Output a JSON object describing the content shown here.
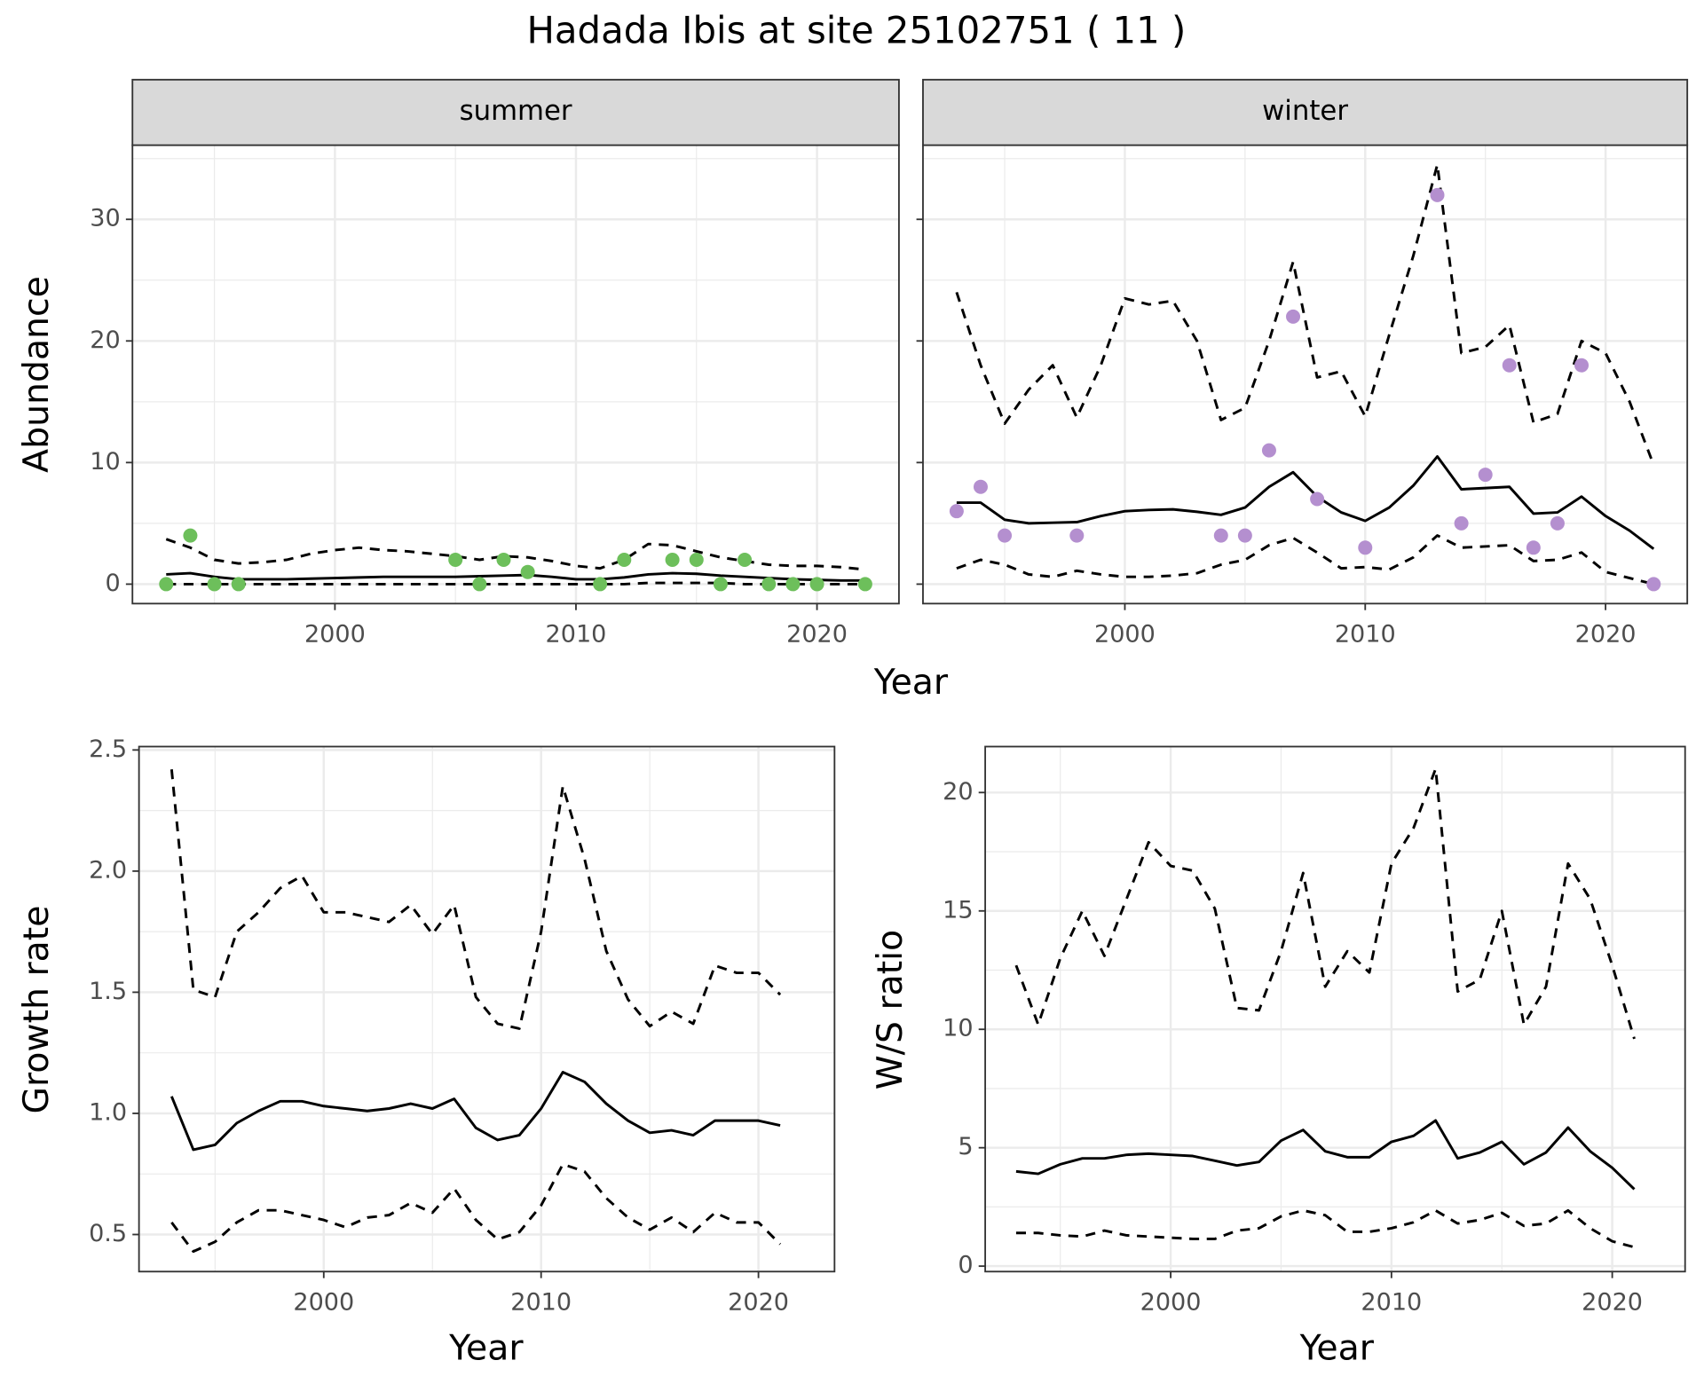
{
  "title": "Hadada Ibis at site 25102751 ( 11 )",
  "chart_data": [
    {
      "type": "line",
      "strip": "summer",
      "xlabel": "Year",
      "ylabel": "Abundance",
      "x": [
        1993,
        1994,
        1995,
        1996,
        1997,
        1998,
        1999,
        2000,
        2001,
        2002,
        2003,
        2004,
        2005,
        2006,
        2007,
        2008,
        2009,
        2010,
        2011,
        2012,
        2013,
        2014,
        2015,
        2016,
        2017,
        2018,
        2019,
        2020,
        2021,
        2022
      ],
      "series": [
        {
          "color": "#000000",
          "dash": "solid",
          "values": [
            0.8,
            0.9,
            0.6,
            0.4,
            0.4,
            0.4,
            0.45,
            0.5,
            0.55,
            0.6,
            0.6,
            0.6,
            0.6,
            0.65,
            0.7,
            0.75,
            0.6,
            0.4,
            0.4,
            0.55,
            0.8,
            0.9,
            0.85,
            0.7,
            0.6,
            0.5,
            0.4,
            0.35,
            0.3,
            0.3
          ]
        },
        {
          "color": "#000000",
          "dash": "dashed",
          "values": [
            3.7,
            3.0,
            2.0,
            1.7,
            1.8,
            2.0,
            2.5,
            2.8,
            3.0,
            2.8,
            2.7,
            2.5,
            2.3,
            2.0,
            2.3,
            2.2,
            1.9,
            1.5,
            1.3,
            2.0,
            3.3,
            3.2,
            2.7,
            2.2,
            1.9,
            1.6,
            1.5,
            1.5,
            1.4,
            1.2
          ]
        },
        {
          "color": "#000000",
          "dash": "dashed",
          "values": [
            0,
            0,
            0,
            0,
            0,
            0,
            0,
            0,
            0,
            0,
            0,
            0,
            0,
            0,
            0,
            0,
            0,
            0,
            0,
            0,
            0.1,
            0.1,
            0.1,
            0.1,
            0,
            0,
            0,
            0,
            0,
            0
          ]
        }
      ],
      "points": {
        "color": "#6dbf5b",
        "x": [
          1993,
          1994,
          1995,
          1996,
          2005,
          2006,
          2007,
          2008,
          2011,
          2012,
          2014,
          2015,
          2016,
          2017,
          2018,
          2019,
          2020,
          2022
        ],
        "values": [
          0,
          4,
          0,
          0,
          2,
          0,
          2,
          1,
          0,
          2,
          2,
          2,
          0,
          2,
          0,
          0,
          0,
          0
        ]
      },
      "xlim": [
        1991.6,
        2023.4
      ],
      "ylim": [
        -1.6,
        36.1
      ],
      "xticks": [
        2000,
        2010,
        2020
      ],
      "yticks": [
        0,
        10,
        20,
        30
      ],
      "grid": true
    },
    {
      "type": "line",
      "strip": "winter",
      "sharey": true,
      "x": [
        1993,
        1994,
        1995,
        1996,
        1997,
        1998,
        1999,
        2000,
        2001,
        2002,
        2003,
        2004,
        2005,
        2006,
        2007,
        2008,
        2009,
        2010,
        2011,
        2012,
        2013,
        2014,
        2015,
        2016,
        2017,
        2018,
        2019,
        2020,
        2021,
        2022
      ],
      "series": [
        {
          "color": "#000000",
          "dash": "solid",
          "values": [
            6.7,
            6.7,
            5.3,
            5.0,
            5.05,
            5.1,
            5.6,
            6.0,
            6.1,
            6.15,
            5.95,
            5.7,
            6.3,
            8.0,
            9.2,
            7.2,
            5.9,
            5.2,
            6.3,
            8.1,
            10.5,
            7.8,
            7.9,
            8.0,
            5.8,
            5.9,
            7.2,
            5.6,
            4.4,
            2.9
          ]
        },
        {
          "color": "#000000",
          "dash": "dashed",
          "values": [
            24.0,
            18.0,
            13.2,
            16.0,
            18.0,
            13.7,
            18.0,
            23.5,
            23.0,
            23.3,
            20.0,
            13.5,
            14.5,
            20.0,
            26.5,
            17.0,
            17.5,
            13.8,
            20.5,
            27.0,
            34.5,
            19.0,
            19.5,
            21.3,
            13.3,
            14.0,
            20.0,
            19.0,
            15.0,
            9.8
          ]
        },
        {
          "color": "#000000",
          "dash": "dashed",
          "values": [
            1.3,
            2.0,
            1.6,
            0.8,
            0.6,
            1.1,
            0.8,
            0.6,
            0.6,
            0.7,
            0.9,
            1.6,
            2.0,
            3.2,
            3.8,
            2.6,
            1.3,
            1.4,
            1.2,
            2.2,
            4.0,
            3.0,
            3.1,
            3.2,
            1.9,
            2.0,
            2.6,
            1.0,
            0.5,
            0.0
          ]
        }
      ],
      "points": {
        "color": "#b48fcf",
        "x": [
          1993,
          1994,
          1995,
          1998,
          2004,
          2005,
          2006,
          2007,
          2008,
          2010,
          2013,
          2014,
          2015,
          2016,
          2017,
          2018,
          2019,
          2022
        ],
        "values": [
          6,
          8,
          4,
          4,
          4,
          4,
          11,
          22,
          7,
          3,
          32,
          5,
          9,
          18,
          3,
          5,
          18,
          0
        ]
      },
      "xlim": [
        1991.6,
        2023.4
      ],
      "ylim": [
        -1.6,
        36.1
      ],
      "xticks": [
        2000,
        2010,
        2020
      ],
      "grid": true
    },
    {
      "type": "line",
      "xlabel": "Year",
      "ylabel": "Growth rate",
      "x": [
        1993,
        1994,
        1995,
        1996,
        1997,
        1998,
        1999,
        2000,
        2001,
        2002,
        2003,
        2004,
        2005,
        2006,
        2007,
        2008,
        2009,
        2010,
        2011,
        2012,
        2013,
        2014,
        2015,
        2016,
        2017,
        2018,
        2019,
        2020,
        2021
      ],
      "series": [
        {
          "color": "#000000",
          "dash": "solid",
          "values": [
            1.07,
            0.85,
            0.87,
            0.96,
            1.01,
            1.05,
            1.05,
            1.03,
            1.02,
            1.01,
            1.02,
            1.04,
            1.02,
            1.06,
            0.94,
            0.89,
            0.91,
            1.02,
            1.17,
            1.13,
            1.04,
            0.97,
            0.92,
            0.93,
            0.91,
            0.97,
            0.97,
            0.97,
            0.95
          ]
        },
        {
          "color": "#000000",
          "dash": "dashed",
          "values": [
            2.42,
            1.51,
            1.48,
            1.75,
            1.83,
            1.93,
            1.98,
            1.83,
            1.83,
            1.81,
            1.79,
            1.86,
            1.74,
            1.86,
            1.48,
            1.37,
            1.35,
            1.75,
            2.35,
            2.05,
            1.67,
            1.47,
            1.36,
            1.42,
            1.37,
            1.61,
            1.58,
            1.58,
            1.49
          ]
        },
        {
          "color": "#000000",
          "dash": "dashed",
          "values": [
            0.55,
            0.43,
            0.47,
            0.55,
            0.6,
            0.6,
            0.58,
            0.56,
            0.53,
            0.57,
            0.58,
            0.63,
            0.59,
            0.69,
            0.56,
            0.48,
            0.51,
            0.62,
            0.79,
            0.76,
            0.65,
            0.57,
            0.52,
            0.57,
            0.51,
            0.59,
            0.55,
            0.55,
            0.46
          ]
        }
      ],
      "xlim": [
        1991.5,
        2023.5
      ],
      "ylim": [
        0.347,
        2.514
      ],
      "xticks": [
        2000,
        2010,
        2020
      ],
      "yticks": [
        0.5,
        {
          "value": 1,
          "label": "1.0"
        },
        1.5,
        {
          "value": 2,
          "label": "2.0"
        },
        2.5
      ],
      "grid": true
    },
    {
      "type": "line",
      "xlabel": "Year",
      "ylabel": "W/S ratio",
      "x": [
        1993,
        1994,
        1995,
        1996,
        1997,
        1998,
        1999,
        2000,
        2001,
        2002,
        2003,
        2004,
        2005,
        2006,
        2007,
        2008,
        2009,
        2010,
        2011,
        2012,
        2013,
        2014,
        2015,
        2016,
        2017,
        2018,
        2019,
        2020,
        2021
      ],
      "series": [
        {
          "color": "#000000",
          "dash": "solid",
          "values": [
            4.0,
            3.9,
            4.3,
            4.55,
            4.55,
            4.7,
            4.75,
            4.7,
            4.65,
            4.45,
            4.25,
            4.4,
            5.3,
            5.75,
            4.85,
            4.6,
            4.6,
            5.25,
            5.5,
            6.15,
            4.55,
            4.8,
            5.25,
            4.3,
            4.8,
            5.85,
            4.85,
            4.15,
            3.25
          ]
        },
        {
          "color": "#000000",
          "dash": "dashed",
          "values": [
            12.7,
            10.2,
            13.0,
            15.0,
            13.1,
            15.5,
            17.9,
            16.9,
            16.7,
            15.1,
            10.9,
            10.8,
            13.3,
            16.6,
            11.8,
            13.3,
            12.4,
            17.0,
            18.5,
            21.0,
            11.6,
            12.1,
            15.0,
            10.2,
            11.8,
            17.0,
            15.5,
            12.7,
            9.6
          ]
        },
        {
          "color": "#000000",
          "dash": "dashed",
          "values": [
            1.4,
            1.4,
            1.3,
            1.25,
            1.5,
            1.3,
            1.25,
            1.2,
            1.15,
            1.15,
            1.5,
            1.6,
            2.1,
            2.35,
            2.15,
            1.45,
            1.45,
            1.6,
            1.85,
            2.35,
            1.8,
            1.95,
            2.25,
            1.7,
            1.8,
            2.35,
            1.6,
            1.05,
            0.8
          ]
        }
      ],
      "xlim": [
        1991.6,
        2023.3
      ],
      "ylim": [
        -0.23,
        21.94
      ],
      "xticks": [
        2000,
        2010,
        2020
      ],
      "yticks": [
        0,
        5,
        10,
        15,
        20
      ],
      "grid": true
    }
  ]
}
